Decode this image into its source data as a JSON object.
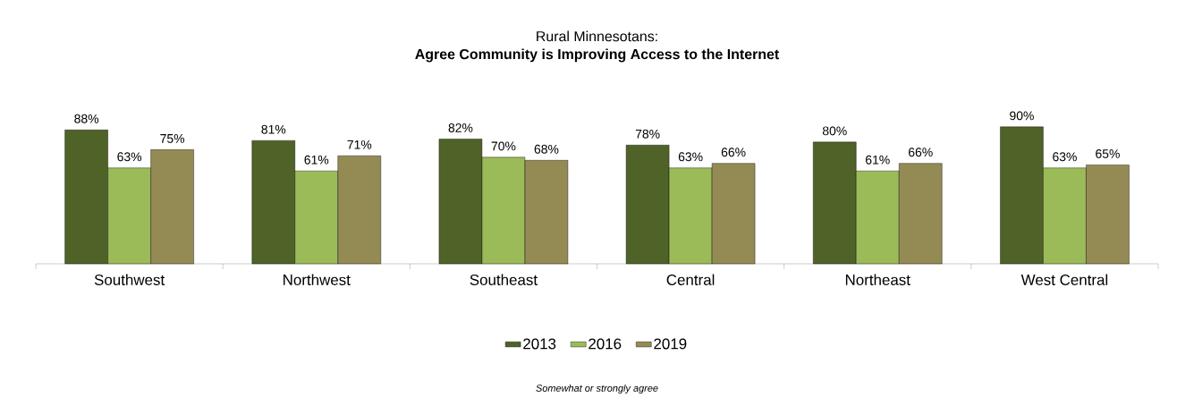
{
  "chart_data": {
    "type": "bar",
    "title": "Rural Minnesotans:",
    "subtitle": "Agree Community is Improving Access to the Internet",
    "categories": [
      "Southwest",
      "Northwest",
      "Southeast",
      "Central",
      "Northeast",
      "West Central"
    ],
    "series": [
      {
        "name": "2013",
        "color": "#4f6228",
        "values": [
          88,
          81,
          82,
          78,
          80,
          90
        ],
        "value_labels": [
          "88%",
          "81%",
          "82%",
          "78%",
          "80%",
          "90%"
        ]
      },
      {
        "name": "2016",
        "color": "#9bbb59",
        "values": [
          63,
          61,
          70,
          63,
          61,
          63
        ],
        "value_labels": [
          "63%",
          "61%",
          "70%",
          "63%",
          "61%",
          "63%"
        ]
      },
      {
        "name": "2019",
        "color": "#948a54",
        "values": [
          75,
          71,
          68,
          66,
          66,
          65
        ],
        "value_labels": [
          "75%",
          "71%",
          "68%",
          "66%",
          "66%",
          "65%"
        ]
      }
    ],
    "legend": "bottom",
    "annotations": [
      "Somewhat or strongly agree"
    ]
  }
}
